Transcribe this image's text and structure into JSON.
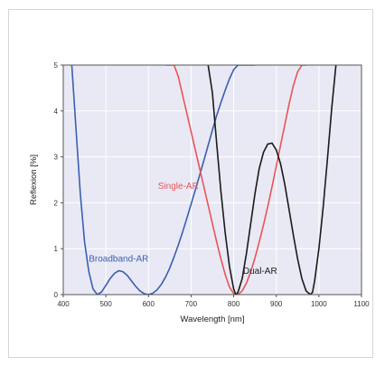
{
  "chart_data": {
    "type": "line",
    "title": "",
    "xlabel": "Wavelength [nm]",
    "ylabel": "Reflexion [%]",
    "xlim": [
      400,
      1100
    ],
    "ylim": [
      0,
      5
    ],
    "x_ticks": [
      "400",
      "500",
      "600",
      "700",
      "800",
      "900",
      "1000",
      "1100"
    ],
    "y_ticks": [
      "0",
      "1",
      "2",
      "3",
      "4",
      "5"
    ],
    "grid": true,
    "background_color": "#e9e9f5",
    "series": [
      {
        "name": "Broadband-AR",
        "color": "#3a5fb0",
        "x": [
          420,
          430,
          440,
          450,
          460,
          470,
          480,
          490,
          500,
          510,
          520,
          530,
          540,
          550,
          560,
          570,
          580,
          590,
          600,
          610,
          620,
          630,
          640,
          650,
          660,
          670,
          680,
          690,
          700,
          710,
          720,
          730,
          740,
          750,
          760,
          770,
          780,
          790,
          800,
          810,
          820,
          830,
          840,
          850
        ],
        "y": [
          5.0,
          3.6,
          2.2,
          1.15,
          0.5,
          0.12,
          0.0,
          0.06,
          0.2,
          0.35,
          0.46,
          0.52,
          0.5,
          0.42,
          0.3,
          0.18,
          0.08,
          0.02,
          0.0,
          0.03,
          0.1,
          0.22,
          0.38,
          0.58,
          0.82,
          1.08,
          1.36,
          1.66,
          1.97,
          2.28,
          2.6,
          2.92,
          3.25,
          3.58,
          3.9,
          4.18,
          4.45,
          4.7,
          4.9,
          5.0,
          5.0,
          5.0,
          5.0,
          5.0
        ]
      },
      {
        "name": "Single-AR",
        "color": "#e85555",
        "x": [
          640,
          650,
          660,
          670,
          680,
          690,
          700,
          710,
          720,
          730,
          740,
          750,
          760,
          770,
          780,
          790,
          800,
          810,
          820,
          830,
          840,
          850,
          860,
          870,
          880,
          890,
          900,
          910,
          920,
          930,
          940,
          950,
          960,
          970
        ],
        "y": [
          5.0,
          5.0,
          5.0,
          4.75,
          4.35,
          3.95,
          3.55,
          3.15,
          2.75,
          2.35,
          1.95,
          1.55,
          1.15,
          0.78,
          0.44,
          0.17,
          0.02,
          0.0,
          0.08,
          0.25,
          0.5,
          0.8,
          1.15,
          1.52,
          1.92,
          2.35,
          2.8,
          3.25,
          3.7,
          4.15,
          4.55,
          4.85,
          5.0,
          5.0
        ]
      },
      {
        "name": "Dual-AR",
        "color": "#1a1a1a",
        "x": [
          740,
          750,
          760,
          770,
          780,
          790,
          800,
          805,
          810,
          820,
          830,
          840,
          850,
          860,
          870,
          880,
          890,
          900,
          910,
          920,
          930,
          940,
          950,
          960,
          970,
          980,
          985,
          990,
          1000,
          1010,
          1020,
          1030,
          1040
        ],
        "y": [
          5.0,
          4.4,
          3.3,
          2.25,
          1.35,
          0.62,
          0.12,
          0.0,
          0.05,
          0.35,
          0.9,
          1.55,
          2.2,
          2.75,
          3.1,
          3.28,
          3.3,
          3.15,
          2.85,
          2.4,
          1.85,
          1.3,
          0.78,
          0.35,
          0.08,
          0.0,
          0.05,
          0.3,
          1.0,
          1.9,
          2.95,
          4.05,
          5.0
        ]
      }
    ],
    "annotations": [
      {
        "text": "Broadband-AR",
        "color": "#3a5fb0",
        "x": 530,
        "y": 0.72
      },
      {
        "text": "Single-AR",
        "color": "#e85555",
        "x": 670,
        "y": 2.3
      },
      {
        "text": "Dual-AR",
        "color": "#1a1a1a",
        "x": 862,
        "y": 0.45
      }
    ]
  }
}
